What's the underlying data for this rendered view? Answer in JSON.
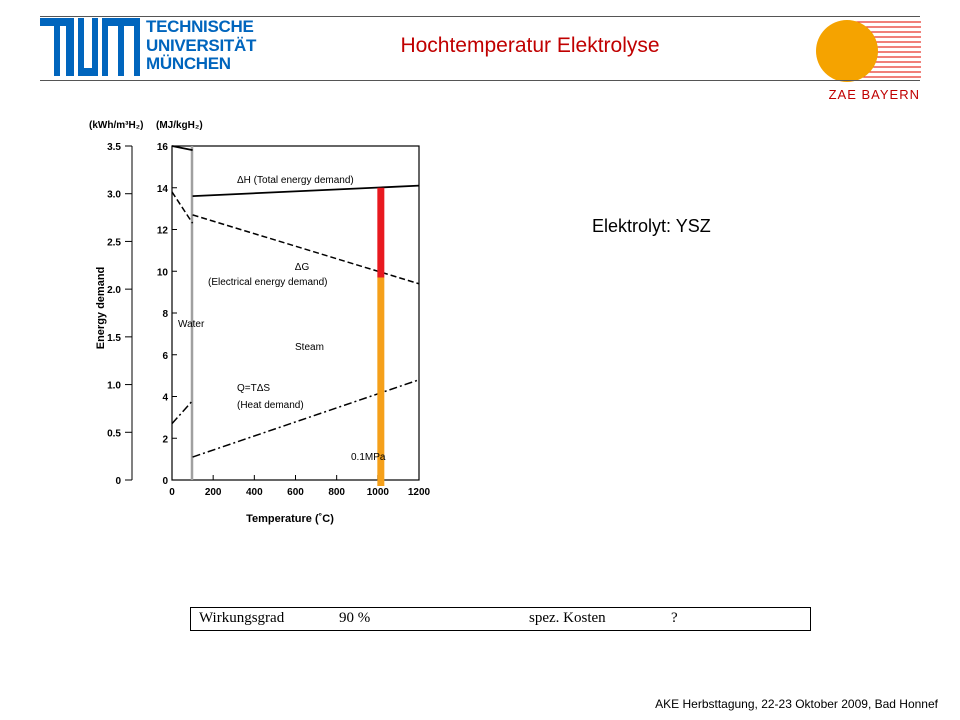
{
  "header": {
    "institution_lines": [
      "TECHNISCHE",
      "UNIVERSITÄT",
      "MÜNCHEN"
    ],
    "title": "Hochtemperatur Elektrolyse",
    "partner_label": "ZAE BAYERN"
  },
  "electrolyte_label": "Elektrolyt: YSZ",
  "colors": {
    "tum_blue": "#0065bd",
    "title_red": "#c00000",
    "sun_orange": "#f5a300",
    "electrical_bar": "#e8191f",
    "heat_bar": "#f5a01a"
  },
  "chart_data": {
    "type": "line",
    "xlabel": "Temperature (˚C)",
    "ylabel": "Energy demand",
    "y_unit_left": "(kWh/m³H₂)",
    "y_unit_right": "(MJ/kgH₂)",
    "x_ticks": [
      "0",
      "200",
      "400",
      "600",
      "800",
      "1000",
      "1200"
    ],
    "y_ticks_left": [
      "0",
      "0.5",
      "1.0",
      "1.5",
      "2.0",
      "2.5",
      "3.0",
      "3.5"
    ],
    "y_ticks_right": [
      "0",
      "2",
      "4",
      "6",
      "8",
      "10",
      "12",
      "14",
      "16"
    ],
    "xlim": [
      0,
      1200
    ],
    "ylim_right": [
      0,
      16
    ],
    "series": [
      {
        "name": "ΔH (Total energy demand)",
        "style": "solid",
        "x": [
          100,
          1200
        ],
        "y": [
          13.6,
          14.1
        ],
        "water_x": [
          0,
          100
        ],
        "water_y": [
          16.0,
          15.8
        ]
      },
      {
        "name": "ΔG (Electrical energy demand)",
        "style": "dashed",
        "x": [
          100,
          1200
        ],
        "y": [
          12.7,
          9.4
        ],
        "water_x": [
          0,
          100
        ],
        "water_y": [
          13.8,
          12.3
        ]
      },
      {
        "name": "Q=TΔS (Heat demand)",
        "style": "dashdot",
        "x": [
          100,
          1200
        ],
        "y": [
          1.1,
          4.8
        ],
        "water_x": [
          0,
          100
        ],
        "water_y": [
          2.7,
          3.8
        ]
      }
    ],
    "annotations": {
      "water": "Water",
      "steam": "Steam",
      "pressure": "0.1MPa",
      "dh_label": "ΔH (Total energy demand)",
      "dg_label_1": "ΔG",
      "dg_label_2": "(Electrical energy demand)",
      "q_label_1": "Q=TΔS",
      "q_label_2": "(Heat demand)"
    },
    "highlight_bars": {
      "x": 1000,
      "electrical": {
        "from": 9.7,
        "to": 14.0
      },
      "heat": {
        "from": 0,
        "to": 9.7
      }
    }
  },
  "info_table": {
    "efficiency_label": "Wirkungsgrad",
    "efficiency_value": "90 %",
    "cost_label": "spez. Kosten",
    "cost_value": "?"
  },
  "footer": "AKE Herbsttagung, 22-23 Oktober 2009,  Bad Honnef"
}
